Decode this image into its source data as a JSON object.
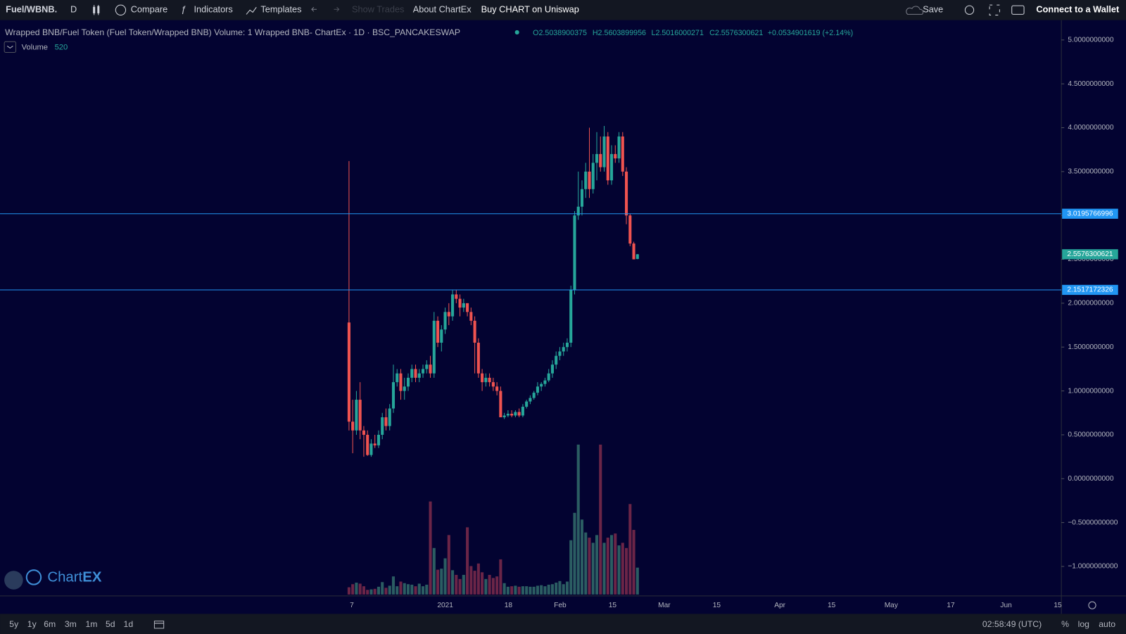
{
  "toolbar": {
    "symbol": "Fuel/WBNB.",
    "interval": "D",
    "compare": "Compare",
    "indicators": "Indicators",
    "templates": "Templates",
    "show_trades": "Show Trades",
    "about": "About ChartEx",
    "buy": "Buy CHART on Uniswap",
    "save": "Save",
    "wallet": "Connect to a Wallet"
  },
  "legend": {
    "title": "Wrapped BNB/Fuel Token (Fuel Token/Wrapped BNB) Volume: 1 Wrapped BNB- ChartEx · 1D · BSC_PANCAKESWAP",
    "open": "O2.5038900375",
    "high": "H2.5603899956",
    "low": "L2.5016000271",
    "close": "C2.5576300621",
    "change": "+0.0534901619 (+2.14%)",
    "volume_label": "Volume",
    "volume_value": "520"
  },
  "brand": [
    "Chart",
    "EX"
  ],
  "footer": {
    "ranges": [
      "5y",
      "1y",
      "6m",
      "3m",
      "1m",
      "5d",
      "1d"
    ],
    "time": "02:58:49 (UTC)",
    "percent": "%",
    "log": "log",
    "auto": "auto"
  },
  "chart_data": {
    "type": "candlestick",
    "open": [
      1.78,
      0.65,
      0.55,
      0.9,
      0.55,
      0.5,
      0.27,
      0.4,
      0.38,
      0.5,
      0.7,
      0.6,
      0.8,
      1.1,
      1.2,
      1.0,
      1.05,
      1.15,
      1.25,
      1.15,
      1.2,
      1.25,
      1.3,
      1.2,
      1.8,
      1.55,
      1.7,
      1.9,
      1.85,
      2.1,
      2.05,
      1.95,
      2.0,
      1.9,
      1.8,
      1.55,
      1.2,
      1.1,
      1.15,
      1.1,
      1.05,
      1.0,
      0.7,
      0.72,
      0.74,
      0.72,
      0.76,
      0.72,
      0.82,
      0.88,
      0.92,
      0.98,
      1.05,
      1.08,
      1.12,
      1.2,
      1.3,
      1.4,
      1.45,
      1.5,
      1.55,
      2.15,
      3.0,
      3.1,
      3.3,
      3.5,
      3.3,
      3.6,
      3.7,
      3.55,
      3.9,
      3.4,
      3.7,
      3.65,
      3.9,
      3.5,
      3.0,
      2.68,
      2.5038900375
    ],
    "high": [
      3.62,
      0.9,
      1.0,
      1.1,
      0.6,
      0.55,
      0.45,
      0.5,
      0.55,
      0.75,
      0.8,
      0.85,
      1.3,
      1.25,
      1.25,
      1.15,
      1.2,
      1.3,
      1.3,
      1.25,
      1.3,
      1.35,
      1.4,
      1.9,
      1.85,
      1.75,
      1.95,
      2.0,
      2.15,
      2.15,
      2.1,
      2.05,
      2.0,
      1.95,
      1.85,
      1.6,
      1.25,
      1.2,
      1.2,
      1.15,
      1.1,
      1.05,
      0.75,
      0.78,
      0.78,
      0.78,
      0.8,
      0.85,
      0.9,
      0.95,
      1.0,
      1.1,
      1.1,
      1.15,
      1.25,
      1.35,
      1.45,
      1.5,
      1.55,
      1.6,
      2.2,
      3.05,
      3.5,
      3.4,
      3.6,
      4.0,
      3.7,
      3.95,
      3.9,
      4.02,
      3.95,
      3.8,
      3.8,
      3.95,
      3.95,
      3.55,
      3.02,
      2.7,
      2.5603899956
    ],
    "low": [
      0.55,
      0.29,
      0.5,
      0.45,
      0.25,
      0.26,
      0.25,
      0.35,
      0.35,
      0.45,
      0.55,
      0.55,
      0.75,
      1.05,
      0.9,
      0.9,
      1.0,
      1.1,
      1.1,
      1.1,
      1.15,
      1.2,
      1.15,
      1.15,
      1.5,
      1.45,
      1.65,
      1.75,
      1.8,
      2.0,
      1.85,
      1.9,
      1.85,
      1.75,
      1.2,
      1.15,
      1.0,
      1.05,
      1.05,
      1.0,
      0.95,
      0.7,
      0.68,
      0.7,
      0.7,
      0.7,
      0.7,
      0.7,
      0.8,
      0.85,
      0.9,
      0.95,
      1.0,
      1.05,
      1.1,
      1.15,
      1.25,
      1.35,
      1.4,
      1.45,
      1.5,
      2.1,
      2.95,
      3.0,
      3.2,
      3.2,
      3.25,
      3.4,
      3.5,
      3.5,
      3.35,
      3.35,
      3.6,
      3.6,
      3.45,
      2.9,
      2.65,
      2.5,
      2.5016000271
    ],
    "close": [
      0.65,
      0.55,
      0.9,
      0.55,
      0.5,
      0.27,
      0.4,
      0.38,
      0.5,
      0.7,
      0.6,
      0.8,
      1.1,
      1.2,
      1.0,
      1.05,
      1.15,
      1.25,
      1.15,
      1.2,
      1.25,
      1.3,
      1.2,
      1.8,
      1.55,
      1.7,
      1.9,
      1.85,
      2.1,
      2.05,
      1.95,
      2.0,
      1.9,
      1.8,
      1.55,
      1.2,
      1.1,
      1.15,
      1.1,
      1.05,
      1.0,
      0.7,
      0.72,
      0.74,
      0.72,
      0.76,
      0.72,
      0.82,
      0.88,
      0.92,
      0.98,
      1.05,
      1.08,
      1.12,
      1.2,
      1.3,
      1.4,
      1.45,
      1.5,
      1.55,
      2.15,
      3.0,
      3.1,
      3.3,
      3.5,
      3.3,
      3.6,
      3.7,
      3.55,
      3.9,
      3.4,
      3.7,
      3.65,
      3.9,
      3.5,
      3.0,
      2.68,
      2.5,
      2.5576300621
    ],
    "volume": [
      140,
      200,
      230,
      210,
      160,
      90,
      100,
      110,
      150,
      240,
      130,
      170,
      350,
      160,
      250,
      220,
      200,
      190,
      160,
      210,
      160,
      190,
      1800,
      900,
      480,
      500,
      700,
      1150,
      470,
      380,
      300,
      380,
      1300,
      550,
      460,
      600,
      430,
      300,
      380,
      320,
      350,
      680,
      220,
      150,
      160,
      170,
      150,
      160,
      160,
      150,
      150,
      170,
      180,
      160,
      190,
      200,
      230,
      260,
      200,
      250,
      1050,
      1580,
      2900,
      1450,
      1200,
      1100,
      1000,
      1150,
      2900,
      1000,
      1100,
      1150,
      1180,
      950,
      1000,
      900,
      1750,
      1250,
      520
    ],
    "volume_ylim": [
      0,
      3000
    ],
    "ylim": [
      -1.32,
      5.21
    ],
    "yticks": [
      {
        "value": 5,
        "label": "5.0000000000"
      },
      {
        "value": 4.5,
        "label": "4.5000000000"
      },
      {
        "value": 4,
        "label": "4.0000000000"
      },
      {
        "value": 3.5,
        "label": "3.5000000000"
      },
      {
        "value": 3,
        "label": "3.0000000000"
      },
      {
        "value": 2.5,
        "label": "2.5000000000"
      },
      {
        "value": 2,
        "label": "2.0000000000"
      },
      {
        "value": 1.5,
        "label": "1.5000000000"
      },
      {
        "value": 1,
        "label": "1.0000000000"
      },
      {
        "value": 0.5,
        "label": "0.5000000000"
      },
      {
        "value": 0,
        "label": "0.0000000000"
      },
      {
        "value": -0.5,
        "label": "−0.5000000000"
      },
      {
        "value": -1,
        "label": "−1.0000000000"
      }
    ],
    "xticks": [
      "7",
      "2021",
      "18",
      "Feb",
      "15",
      "Mar",
      "15",
      "Apr",
      "15",
      "May",
      "17",
      "Jun",
      "15"
    ],
    "hlines": [
      {
        "value": 3.0195766996,
        "label": "3.0195766996"
      },
      {
        "value": 2.1517172326,
        "label": "2.1517172326"
      }
    ],
    "last": {
      "value": 2.5576300621,
      "label": "2.5576300621"
    },
    "up_color": "#26a69a",
    "down_color": "#ef5350",
    "hline_color": "#2196f3",
    "volume_up_color": "#2b5d62",
    "volume_down_color": "#6b2547"
  }
}
